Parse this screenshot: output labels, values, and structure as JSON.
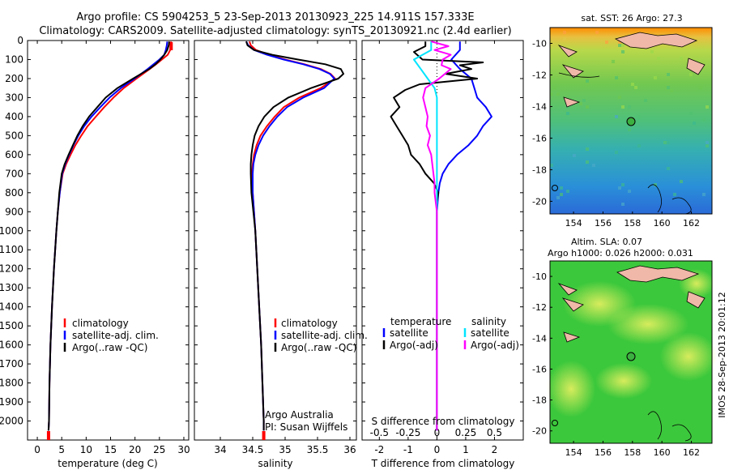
{
  "header": {
    "line1": "Argo profile: CS 5904253_5 23-Sep-2013 20130923_225 14.911S 157.333E",
    "line2": "Climatology: CARS2009. Satellite-adjusted climatology: synTS_20130921.nc (2.4d earlier)"
  },
  "colors": {
    "climatology": "#ff0000",
    "satellite": "#0000ff",
    "argo": "#000000",
    "t_diff_argo": "#000000",
    "s_satellite": "#00e5ff",
    "s_argo": "#ff00ff"
  },
  "chart_data": [
    {
      "type": "line",
      "panel": "temperature",
      "xlabel": "temperature (deg C)",
      "ylabel": "",
      "xlim": [
        -2,
        31
      ],
      "ylim": [
        2100,
        0
      ],
      "xticks": [
        "0",
        "5",
        "10",
        "15",
        "20",
        "25",
        "30"
      ],
      "yticks": [
        "0",
        "100",
        "200",
        "300",
        "400",
        "500",
        "600",
        "700",
        "800",
        "900",
        "1000",
        "1100",
        "1200",
        "1300",
        "1400",
        "1500",
        "1600",
        "1700",
        "1800",
        "1900",
        "2000"
      ],
      "legend": [
        "climatology",
        "satellite-adj. clim.",
        "Argo(..raw -QC)"
      ],
      "series": [
        {
          "name": "climatology",
          "y": [
            5,
            25,
            50,
            75,
            100,
            125,
            150,
            200,
            250,
            300,
            350,
            400,
            450,
            500,
            550,
            600,
            650,
            700,
            800,
            900,
            1000,
            1200,
            1400,
            1600,
            1800,
            2000,
            2050
          ],
          "values": [
            27.4,
            27.3,
            27.2,
            26.7,
            25.5,
            24.3,
            23.0,
            20.3,
            17.7,
            15.6,
            13.7,
            12.0,
            10.3,
            9.0,
            7.8,
            6.8,
            5.9,
            5.2,
            4.6,
            4.2,
            3.9,
            3.4,
            3.0,
            2.7,
            2.5,
            2.4,
            2.3
          ]
        },
        {
          "name": "satellite-adj. clim.",
          "y": [
            5,
            25,
            50,
            75,
            100,
            125,
            150,
            200,
            250,
            300,
            350,
            400,
            450,
            500,
            550,
            600,
            650,
            700,
            800,
            900,
            1000,
            1200,
            1400,
            1600,
            1800,
            2000,
            2050
          ],
          "values": [
            26.6,
            26.5,
            26.3,
            26.0,
            25.0,
            23.8,
            22.6,
            19.9,
            17.1,
            14.8,
            12.9,
            11.1,
            9.6,
            8.4,
            7.4,
            6.5,
            5.7,
            5.1,
            4.6,
            4.2,
            3.9,
            3.4,
            3.0,
            2.7,
            2.5,
            2.4,
            2.3
          ]
        },
        {
          "name": "Argo(..raw -QC)",
          "y": [
            5,
            25,
            50,
            75,
            100,
            125,
            150,
            200,
            250,
            300,
            350,
            400,
            450,
            500,
            550,
            600,
            650,
            700,
            800,
            900,
            1000,
            1200,
            1400,
            1600,
            1800,
            2000,
            2050
          ],
          "values": [
            27.0,
            26.9,
            26.6,
            26.0,
            25.2,
            24.2,
            22.9,
            19.6,
            16.4,
            14.0,
            12.3,
            10.6,
            9.3,
            8.2,
            7.3,
            6.4,
            5.6,
            5.0,
            4.5,
            4.2,
            3.9,
            3.4,
            3.0,
            2.7,
            2.5,
            2.4,
            2.3
          ]
        }
      ]
    },
    {
      "type": "line",
      "panel": "salinity",
      "xlabel": "salinity",
      "ylabel": "",
      "xlim": [
        33.6,
        36.1
      ],
      "ylim": [
        2100,
        0
      ],
      "xticks": [
        "34",
        "34.5",
        "35",
        "35.5",
        "36"
      ],
      "legend": [
        "climatology",
        "satellite-adj. clim.",
        "Argo(..raw -QC)"
      ],
      "annotation": [
        "Argo Australia",
        "PI: Susan Wijffels"
      ],
      "series": [
        {
          "name": "climatology",
          "y": [
            5,
            25,
            50,
            75,
            100,
            125,
            150,
            175,
            200,
            250,
            300,
            350,
            400,
            450,
            500,
            550,
            600,
            650,
            700,
            800,
            900,
            1000,
            1200,
            1400,
            1600,
            1800,
            2000,
            2050
          ],
          "values": [
            34.45,
            34.47,
            34.55,
            34.75,
            35.0,
            35.3,
            35.55,
            35.7,
            35.77,
            35.55,
            35.22,
            34.98,
            34.84,
            34.72,
            34.62,
            34.56,
            34.52,
            34.5,
            34.49,
            34.5,
            34.52,
            34.54,
            34.57,
            34.6,
            34.63,
            34.65,
            34.67,
            34.67
          ]
        },
        {
          "name": "satellite-adj. clim.",
          "y": [
            5,
            25,
            50,
            75,
            100,
            125,
            150,
            175,
            200,
            250,
            300,
            350,
            400,
            450,
            500,
            550,
            600,
            650,
            700,
            800,
            900,
            1000,
            1200,
            1400,
            1600,
            1800,
            2000,
            2050
          ],
          "values": [
            34.4,
            34.43,
            34.52,
            34.72,
            34.98,
            35.28,
            35.53,
            35.69,
            35.76,
            35.6,
            35.28,
            35.03,
            34.88,
            34.76,
            34.66,
            34.59,
            34.54,
            34.51,
            34.5,
            34.5,
            34.52,
            34.54,
            34.57,
            34.6,
            34.63,
            34.65,
            34.67,
            34.67
          ]
        },
        {
          "name": "Argo(..raw -QC)",
          "y": [
            5,
            25,
            50,
            75,
            100,
            125,
            150,
            175,
            200,
            250,
            300,
            350,
            400,
            450,
            500,
            550,
            600,
            650,
            700,
            800,
            900,
            1000,
            1200,
            1400,
            1600,
            1800,
            2000,
            2050
          ],
          "values": [
            34.4,
            34.42,
            34.52,
            34.8,
            35.2,
            35.62,
            35.86,
            35.9,
            35.82,
            35.4,
            35.05,
            34.82,
            34.68,
            34.59,
            34.53,
            34.5,
            34.48,
            34.47,
            34.47,
            34.48,
            34.51,
            34.54,
            34.57,
            34.6,
            34.63,
            34.65,
            34.67,
            34.67
          ]
        }
      ]
    },
    {
      "type": "line",
      "panel": "differences",
      "xlabel": "T difference from climatology",
      "xlabel_top": "S difference from climatology",
      "xlim": [
        -2.6,
        3.0
      ],
      "ylim": [
        2100,
        0
      ],
      "xticks": [
        "-2",
        "-1",
        "0",
        "1",
        "2"
      ],
      "xticks_s": [
        "-0.5",
        "-0.25",
        "0",
        "0.25",
        "0.5"
      ],
      "legend_titles": [
        "temperature",
        "salinity"
      ],
      "legend": [
        "satellite",
        "Argo(-adj)",
        "satellite",
        "Argo(-adj)"
      ],
      "series": [
        {
          "name": "satellite",
          "quantity": "temperature",
          "y": [
            5,
            50,
            100,
            150,
            200,
            250,
            300,
            350,
            400,
            450,
            500,
            550,
            600,
            650,
            700,
            750,
            800,
            900,
            1000,
            1200,
            1600,
            2000,
            2050
          ],
          "values": [
            0.8,
            0.8,
            0.5,
            0.8,
            1.2,
            1.3,
            1.4,
            1.7,
            1.9,
            1.6,
            1.4,
            1.1,
            0.7,
            0.4,
            0.2,
            0.1,
            0.05,
            0,
            0,
            0,
            0,
            0,
            0
          ]
        },
        {
          "name": "Argo(-adj)",
          "quantity": "temperature",
          "y": [
            5,
            30,
            60,
            100,
            115,
            130,
            150,
            175,
            200,
            230,
            260,
            300,
            350,
            400,
            450,
            500,
            550,
            600,
            650,
            700,
            750,
            800,
            850,
            900,
            1000,
            1200,
            1600,
            2000,
            2050
          ],
          "values": [
            -0.4,
            -0.4,
            -0.8,
            -0.5,
            1.6,
            0.8,
            1.2,
            0.3,
            1.4,
            -0.6,
            -1.1,
            -1.5,
            -1.3,
            -1.6,
            -1.4,
            -1.2,
            -1.0,
            -0.9,
            -0.6,
            -0.4,
            -0.1,
            0.05,
            0,
            0,
            0,
            0,
            0,
            0,
            0
          ]
        },
        {
          "name": "satellite",
          "quantity": "salinity",
          "y": [
            5,
            50,
            100,
            150,
            200,
            250,
            300,
            400,
            500,
            600,
            700,
            800,
            900,
            1000,
            1200,
            1600,
            2000,
            2050
          ],
          "values": [
            -0.05,
            -0.05,
            -0.2,
            -0.14,
            -0.08,
            -0.02,
            0,
            0,
            0,
            0,
            0,
            0,
            0,
            0,
            0,
            0,
            0,
            0
          ]
        },
        {
          "name": "Argo(-adj)",
          "quantity": "salinity",
          "y": [
            5,
            30,
            50,
            75,
            100,
            130,
            150,
            200,
            250,
            300,
            350,
            400,
            450,
            500,
            550,
            600,
            650,
            700,
            750,
            800,
            900,
            1000,
            1200,
            1600,
            2000,
            2050
          ],
          "values": [
            -0.05,
            0.1,
            -0.02,
            0.12,
            0.05,
            0.04,
            0.12,
            0.02,
            -0.1,
            -0.12,
            -0.1,
            -0.08,
            -0.09,
            -0.06,
            -0.08,
            -0.05,
            -0.04,
            -0.03,
            -0.02,
            -0.02,
            0,
            0,
            0,
            0,
            0,
            0
          ]
        }
      ]
    },
    {
      "type": "heatmap",
      "panel": "sst_map",
      "title": "sat. SST: 26 Argo: 27.3",
      "xticks": [
        "154",
        "156",
        "158",
        "160",
        "162"
      ],
      "yticks": [
        "-10",
        "-12",
        "-14",
        "-16",
        "-18",
        "-20"
      ],
      "xlim": [
        152.4,
        163.4
      ],
      "ylim": [
        -20.8,
        -9.0
      ],
      "argo_position": {
        "lon": 157.333,
        "lat": -14.911
      }
    },
    {
      "type": "heatmap",
      "panel": "sla_map",
      "title": "Altim. SLA: 0.07",
      "subtitle": "Argo h1000: 0.026 h2000: 0.031",
      "xticks": [
        "154",
        "156",
        "158",
        "160",
        "162"
      ],
      "yticks": [
        "-10",
        "-12",
        "-14",
        "-16",
        "-18",
        "-20"
      ],
      "xlim": [
        152.4,
        163.4
      ],
      "ylim": [
        -20.8,
        -9.0
      ],
      "argo_position": {
        "lon": 157.333,
        "lat": -14.911
      },
      "side_label": "IMOS 28-Sep-2013 20:01:12"
    }
  ]
}
